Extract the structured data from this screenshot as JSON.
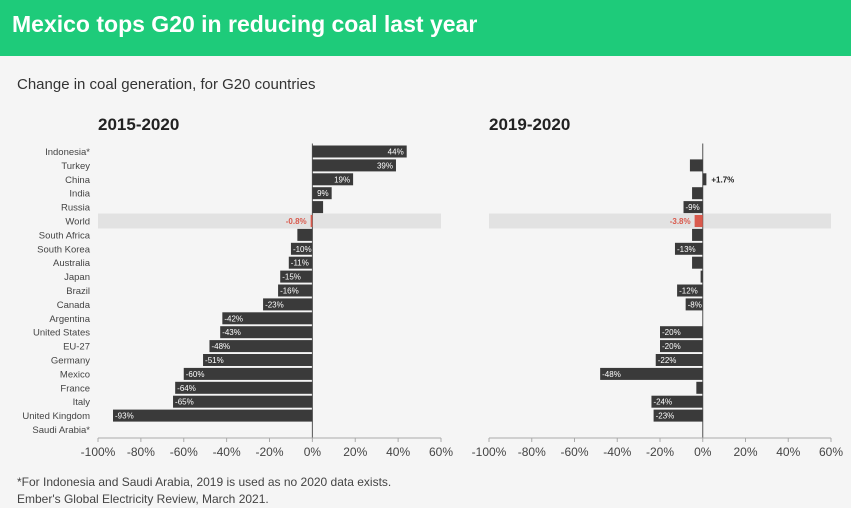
{
  "header": {
    "title": "Mexico tops G20 in reducing coal last year"
  },
  "subtitle": "Change in coal generation, for G20 countries",
  "footnotes": [
    "*For Indonesia and Saudi Arabia, 2019 is used as no 2020 data exists.",
    "Ember's Global Electricity Review, March 2021."
  ],
  "colors": {
    "bar": "#3a3a3a",
    "highlight": "#d9594c",
    "band": "#e2e2e2",
    "axis": "#aaaaaa",
    "header": "#1ecb7a"
  },
  "chart_data": [
    {
      "type": "bar",
      "orientation": "horizontal",
      "title": "2015-2020",
      "xlim": [
        -100,
        60
      ],
      "ticks": [
        "-100%",
        "-80%",
        "-60%",
        "-40%",
        "-20%",
        "0%",
        "20%",
        "40%",
        "60%"
      ],
      "highlight_category": "World",
      "categories": [
        "Indonesia*",
        "Turkey",
        "China",
        "India",
        "Russia",
        "World",
        "South Africa",
        "South Korea",
        "Australia",
        "Japan",
        "Brazil",
        "Canada",
        "Argentina",
        "United States",
        "EU-27",
        "Germany",
        "Mexico",
        "France",
        "Italy",
        "United Kingdom",
        "Saudi Arabia*"
      ],
      "values": [
        44,
        39,
        19,
        9,
        5,
        -0.8,
        -7,
        -10,
        -11,
        -15,
        -16,
        -23,
        -42,
        -43,
        -48,
        -51,
        -60,
        -64,
        -65,
        -93,
        0
      ],
      "labels": [
        "44%",
        "39%",
        "19%",
        "9%",
        "",
        "-0.8%",
        "",
        "-10%",
        "-11%",
        "-15%",
        "-16%",
        "-23%",
        "-42%",
        "-43%",
        "-48%",
        "-51%",
        "-60%",
        "-64%",
        "-65%",
        "-93%",
        ""
      ]
    },
    {
      "type": "bar",
      "orientation": "horizontal",
      "title": "2019-2020",
      "xlim": [
        -100,
        60
      ],
      "ticks": [
        "-100%",
        "-80%",
        "-60%",
        "-40%",
        "-20%",
        "0%",
        "20%",
        "40%",
        "60%"
      ],
      "highlight_category": "World",
      "categories": [
        "Indonesia*",
        "Turkey",
        "China",
        "India",
        "Russia",
        "World",
        "South Africa",
        "South Korea",
        "Australia",
        "Japan",
        "Brazil",
        "Canada",
        "Argentina",
        "United States",
        "EU-27",
        "Germany",
        "Mexico",
        "France",
        "Italy",
        "United Kingdom",
        "Saudi Arabia*"
      ],
      "values": [
        0,
        -6,
        1.7,
        -5,
        -9,
        -3.8,
        -5,
        -13,
        -5,
        -1,
        -12,
        -8,
        0,
        -20,
        -20,
        -22,
        -48,
        -3,
        -24,
        -23,
        0
      ],
      "labels": [
        "",
        "",
        "+1.7%",
        "",
        "-9%",
        "-3.8%",
        "",
        "-13%",
        "",
        "",
        "-12%",
        "-8%",
        "",
        "-20%",
        "-20%",
        "-22%",
        "-48%",
        "",
        "-24%",
        "-23%",
        ""
      ]
    }
  ]
}
